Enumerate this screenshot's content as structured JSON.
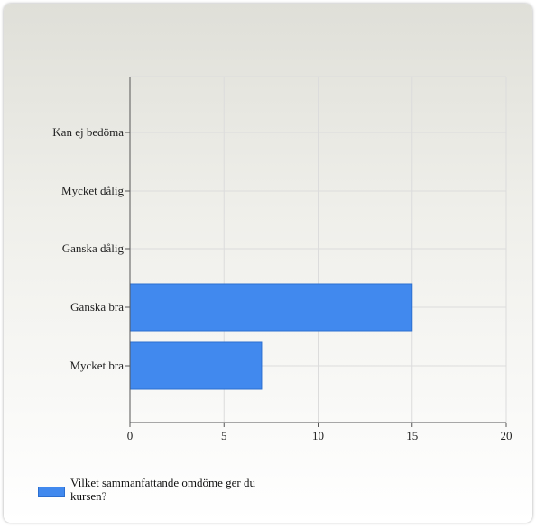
{
  "colors": {
    "bar": "#4189ee",
    "bar_border": "#2c6fd0",
    "grid": "#dcdcdc",
    "axis": "#555555"
  },
  "chart_data": {
    "type": "bar",
    "orientation": "horizontal",
    "categories": [
      "Kan ej bedöma",
      "Mycket dålig",
      "Ganska dålig",
      "Ganska bra",
      "Mycket bra"
    ],
    "series": [
      {
        "name": "Vilket sammanfattande omdöme ger du kursen?",
        "values": [
          0,
          0,
          0,
          15,
          7
        ]
      }
    ],
    "xlim": [
      0,
      20
    ],
    "xticks": [
      "0",
      "5",
      "10",
      "15",
      "20"
    ],
    "grid": true,
    "legend_position": "bottom-left"
  }
}
